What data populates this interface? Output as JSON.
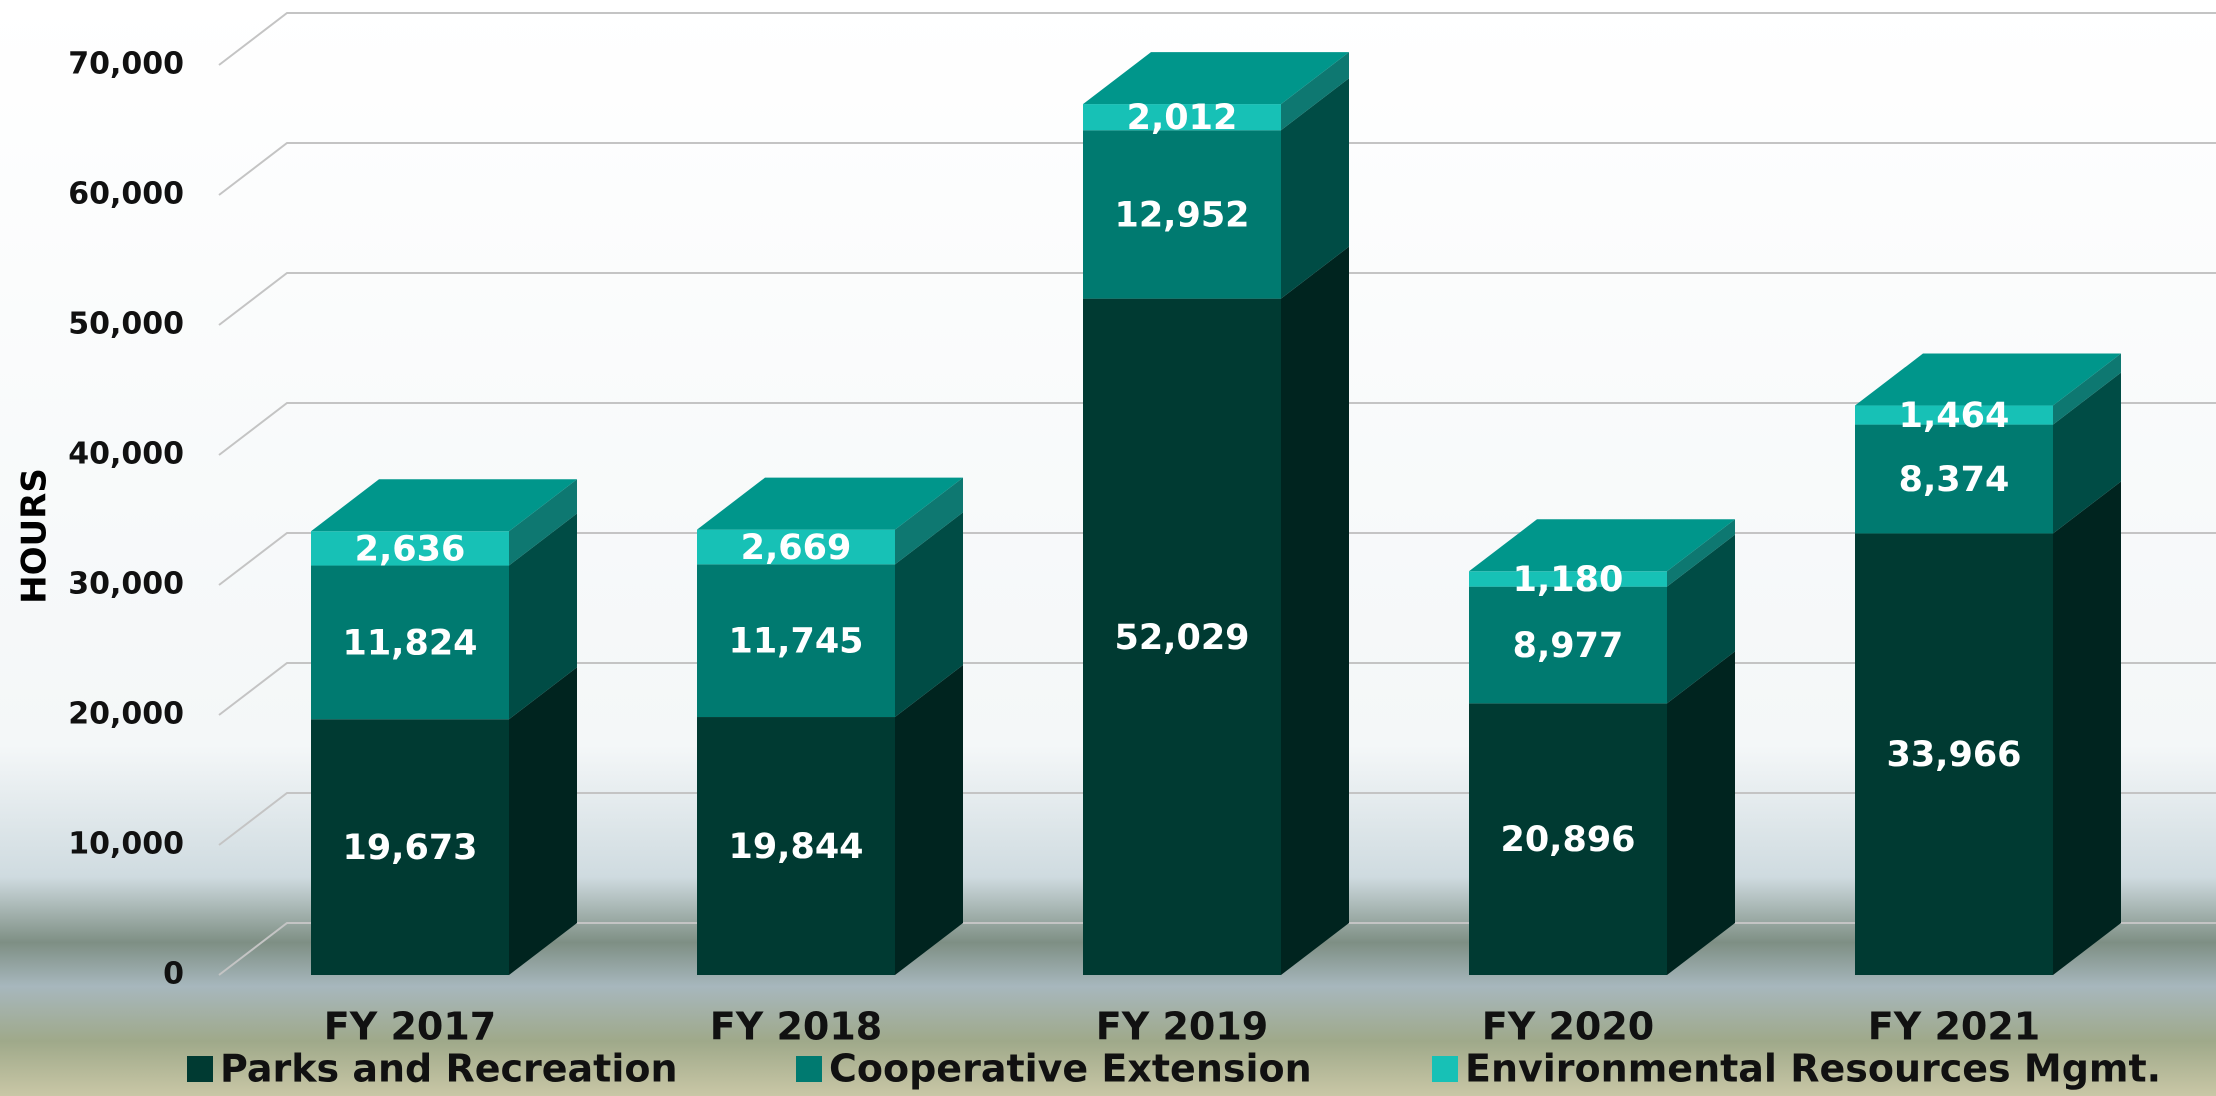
{
  "chart_data": {
    "type": "bar3d_stacked",
    "y_axis_label": "HOURS",
    "categories": [
      "FY 2017",
      "FY 2018",
      "FY 2019",
      "FY 2020",
      "FY 2021"
    ],
    "series": [
      {
        "name": "Parks and Recreation",
        "color": "#003a32",
        "values": [
          19673,
          19844,
          52029,
          20896,
          33966
        ],
        "value_labels": [
          "19,673",
          "19,844",
          "52,029",
          "20,896",
          "33,966"
        ]
      },
      {
        "name": "Cooperative Extension",
        "color": "#007a70",
        "values": [
          11824,
          11745,
          12952,
          8977,
          8374
        ],
        "value_labels": [
          "11,824",
          "11,745",
          "12,952",
          "8,977",
          "8,374"
        ]
      },
      {
        "name": "Environmental Resources Mgmt.",
        "color": "#17c1b6",
        "values": [
          2636,
          2669,
          2012,
          1180,
          1464
        ],
        "value_labels": [
          "2,636",
          "2,669",
          "2,012",
          "1,180",
          "1,464"
        ]
      }
    ],
    "ylim": [
      0,
      70000
    ],
    "yticks": [
      0,
      {
        "value": 10000,
        "label": "10,000"
      },
      {
        "value": 20000,
        "label": "20,000"
      },
      {
        "value": 30000,
        "label": "30,000"
      },
      {
        "value": 40000,
        "label": "40,000"
      },
      {
        "value": 50000,
        "label": "50,000"
      },
      {
        "value": 60000,
        "label": "60,000"
      },
      {
        "value": 70000,
        "label": "70,000"
      }
    ],
    "grid": true
  }
}
